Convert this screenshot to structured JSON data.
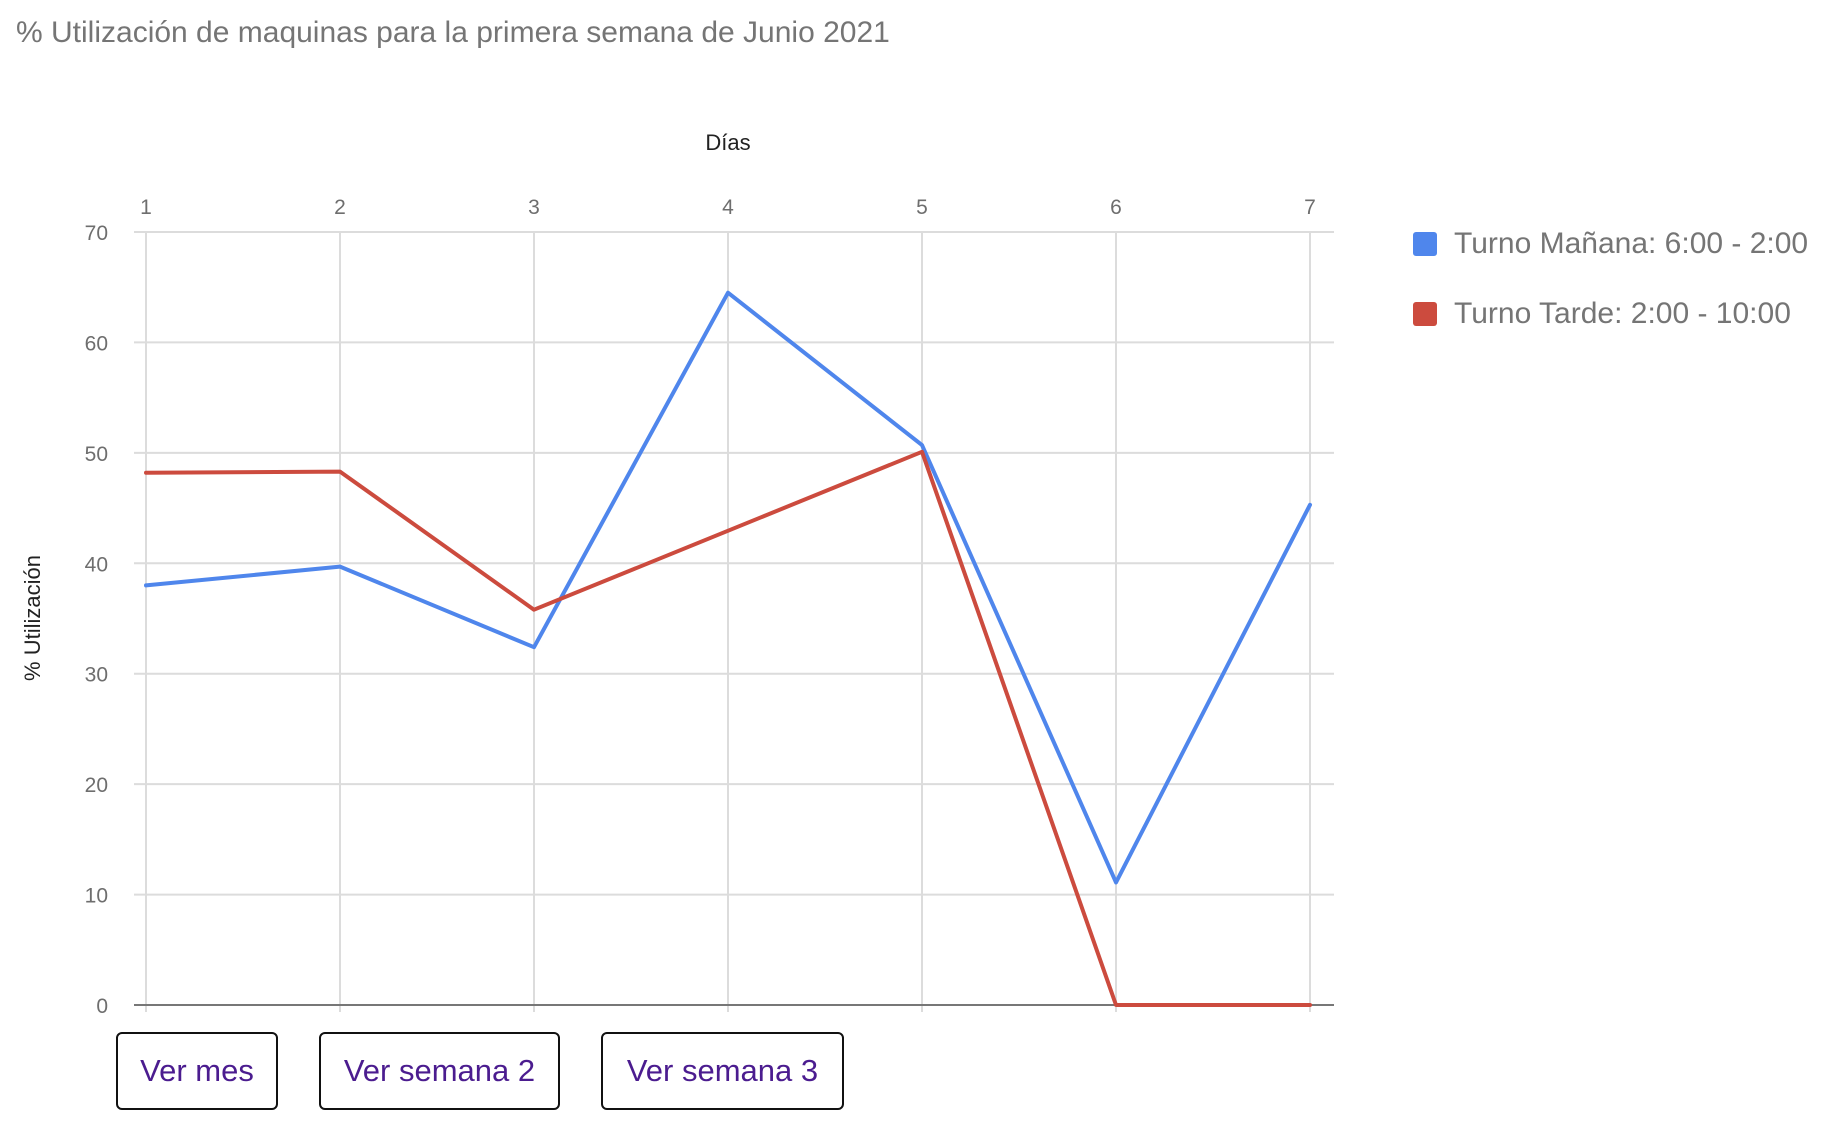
{
  "chart_data": {
    "type": "line",
    "title": "% Utilización de maquinas para la primera semana de Junio 2021",
    "xlabel": "Días",
    "ylabel": "% Utilización",
    "x": [
      1,
      2,
      3,
      4,
      5,
      6,
      7
    ],
    "ylim": [
      0,
      70
    ],
    "yticks": [
      0,
      10,
      20,
      30,
      40,
      50,
      60,
      70
    ],
    "x_axis_position": "top",
    "grid": true,
    "legend_position": "right",
    "series": [
      {
        "name": "Turno Mañana: 6:00 - 2:00",
        "color": "#4f86ec",
        "values": [
          38.0,
          39.7,
          32.4,
          64.5,
          50.7,
          11.1,
          45.3
        ]
      },
      {
        "name": "Turno Tarde: 2:00 - 10:00",
        "color": "#cc4b3e",
        "values": [
          48.2,
          48.3,
          35.8,
          null,
          50.1,
          0,
          0
        ]
      }
    ]
  },
  "buttons": {
    "month": "Ver mes",
    "week2": "Ver semana 2",
    "week3": "Ver semana 3"
  }
}
